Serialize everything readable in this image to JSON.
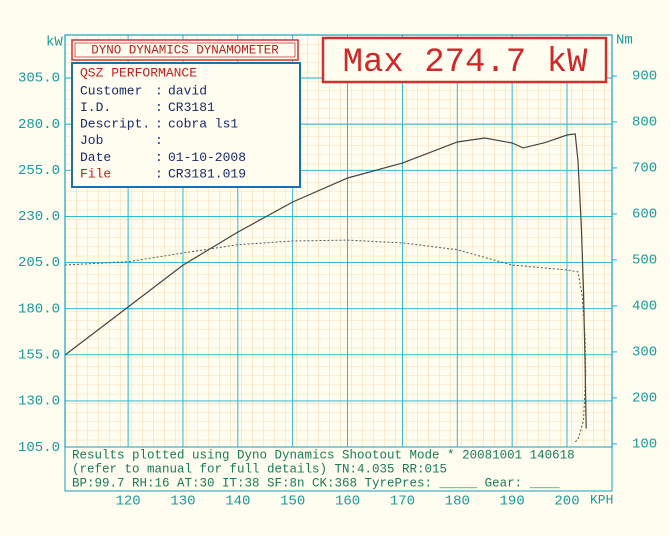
{
  "chart_data": {
    "type": "line",
    "title": "DYNO DYNAMICS DYNAMOMETER",
    "subtitle": "Max 274.7 kW",
    "y_label": "kW",
    "y2_label": "Nm",
    "x_label": "KPH",
    "info": {
      "heading": "QSZ PERFORMANCE",
      "fields": [
        {
          "label": "Customer",
          "value": "david"
        },
        {
          "label": "I.D.",
          "value": "CR3181"
        },
        {
          "label": "Descript.",
          "value": "cobra ls1"
        },
        {
          "label": "Job"
        },
        {
          "label": "Date",
          "value": "01-10-2008"
        },
        {
          "label": "File",
          "value": "CR3181.019"
        }
      ]
    },
    "footer": [
      "Results plotted using Dyno Dynamics Shootout Mode * 20081001 140618",
      "(refer to manual for full details) TN:4.035 RR:015",
      "BP:99.7  RH:16 AT:30 IT:38  SF:8n CK:368 TyrePres: _____  Gear: ____"
    ],
    "xlim": [
      108.5,
      208.2
    ],
    "xticks": [
      120,
      130,
      140,
      150,
      160,
      170,
      180,
      190,
      200
    ],
    "ylim": [
      104.5,
      328.3
    ],
    "yticks": [
      {
        "value": 105,
        "label": "105.0"
      },
      {
        "value": 130,
        "label": "130.0"
      },
      {
        "value": 155,
        "label": "155.0"
      },
      {
        "value": 180,
        "label": "180.0"
      },
      {
        "value": 205,
        "label": "205.0"
      },
      {
        "value": 230,
        "label": "230.0"
      },
      {
        "value": 255,
        "label": "255.0"
      },
      {
        "value": 280,
        "label": "280.0"
      },
      {
        "value": 305,
        "label": "305.0"
      }
    ],
    "y2lim": [
      91,
      989
    ],
    "y2ticks": [
      100,
      200,
      300,
      400,
      500,
      600,
      700,
      800,
      900
    ],
    "grid": true,
    "series": [
      {
        "axis": "y",
        "color": "#444444",
        "dashed": false,
        "x": [
          108.5,
          120,
          130,
          140,
          150,
          160,
          170,
          180,
          185,
          190,
          192,
          196,
          200,
          201.5,
          202.0,
          202.6,
          203.0,
          203.3,
          203.5
        ],
        "values": [
          154.9,
          180.9,
          203.6,
          221.5,
          237.8,
          250.8,
          258.9,
          270.3,
          272.5,
          269.8,
          267.1,
          270,
          274.1,
          274.7,
          260,
          225,
          190,
          150,
          115
        ]
      },
      {
        "axis": "y2",
        "color": "#555555",
        "dashed": true,
        "x": [
          108.5,
          120,
          130,
          140,
          150,
          160,
          170,
          180,
          190,
          200,
          202.0,
          202.8,
          203.3,
          203.4,
          203.0,
          202.0,
          201.4
        ],
        "values": [
          489,
          496,
          515,
          533,
          541,
          543,
          537,
          522,
          489,
          478,
          474,
          420,
          330,
          250,
          150,
          110,
          103
        ]
      }
    ]
  }
}
